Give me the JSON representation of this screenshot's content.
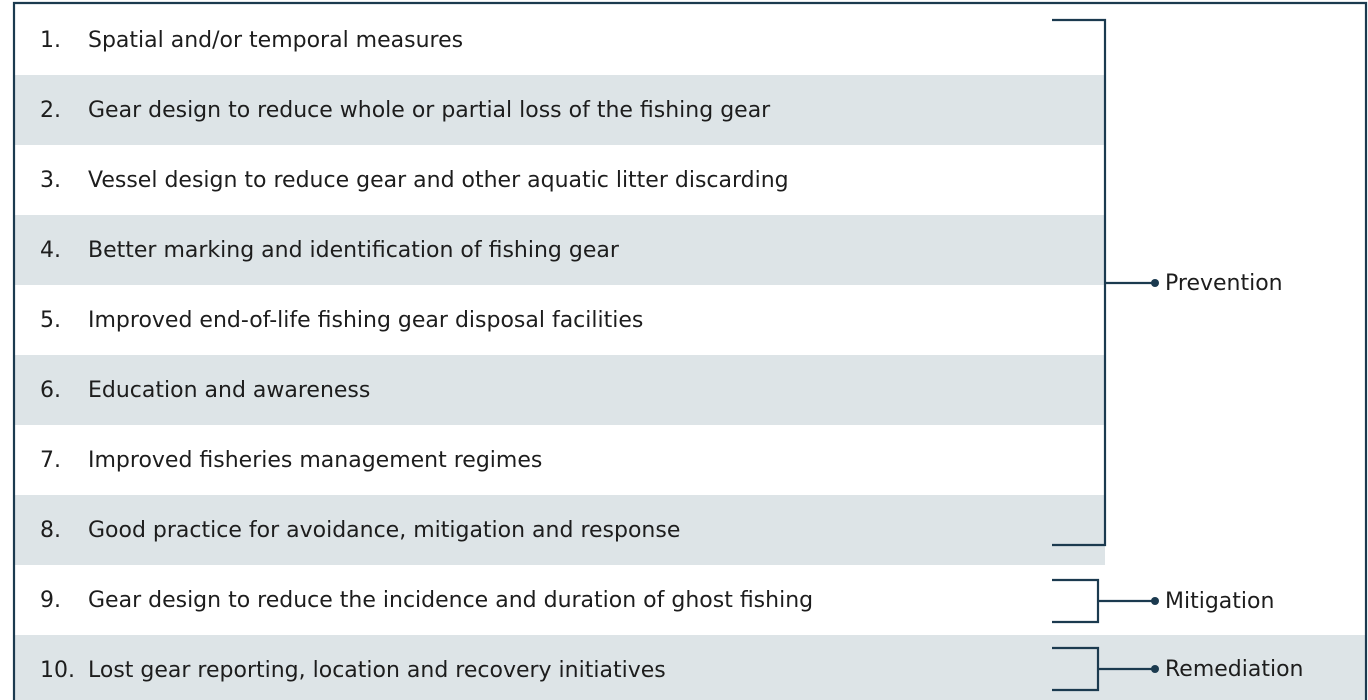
{
  "items": [
    {
      "number": "1.",
      "text": "Spatial and/or temporal measures"
    },
    {
      "number": "2.",
      "text": "Gear design to reduce whole or partial loss of the fishing gear"
    },
    {
      "number": "3.",
      "text": "Vessel design to reduce gear and other aquatic litter discarding"
    },
    {
      "number": "4.",
      "text": "Better marking and identification of fishing gear"
    },
    {
      "number": "5.",
      "text": "Improved end-of-life fishing gear disposal facilities"
    },
    {
      "number": "6.",
      "text": "Education and awareness"
    },
    {
      "number": "7.",
      "text": "Improved fisheries management regimes"
    },
    {
      "number": "8.",
      "text": "Good practice for avoidance, mitigation and response"
    },
    {
      "number": "9.",
      "text": "Gear design to reduce the incidence and duration of ghost fishing"
    },
    {
      "number": "10.",
      "text": "Lost gear reporting, location and recovery initiatives"
    }
  ],
  "groups": [
    {
      "label": "Prevention"
    },
    {
      "label": "Mitigation"
    },
    {
      "label": "Remediation"
    }
  ]
}
